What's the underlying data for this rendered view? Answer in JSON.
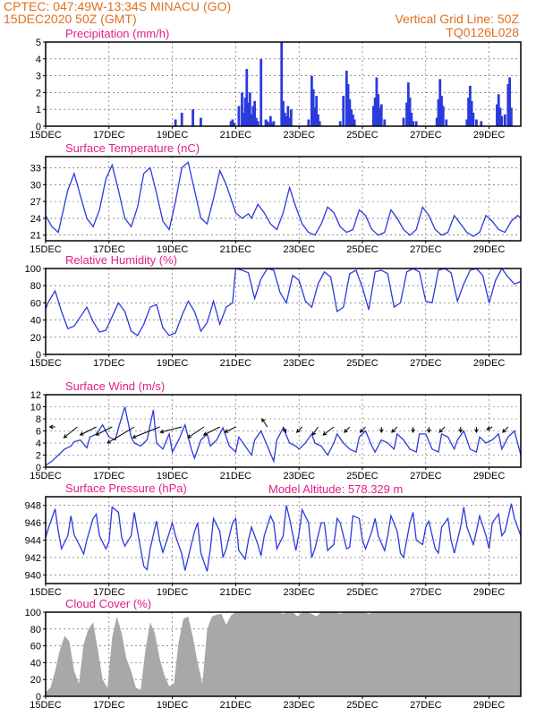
{
  "header": {
    "line1_left": "CPTEC:  047:49W-13:34S  MINACU (GO)",
    "line2_left": "15DEC2020 50Z (GMT)",
    "line1_right": "Vertical Grid Line: 50Z",
    "line2_right": "TQ0126L028"
  },
  "colors": {
    "header": "#e07020",
    "title": "#e0208a",
    "series": "#2a3bdc",
    "cloud": "#a8a8a8"
  },
  "x_ticks": [
    "15DEC",
    "17DEC",
    "19DEC",
    "21DEC",
    "23DEC",
    "25DEC",
    "27DEC",
    "29DEC"
  ],
  "model_altitude": "Model Altitude: 578.329 m",
  "chart_data": [
    {
      "type": "bar",
      "title": "Precipitation (mm/h)",
      "ylim": [
        0,
        5
      ],
      "yticks": [
        0,
        1,
        2,
        3,
        4,
        5
      ],
      "x_days": [
        4.1,
        4.3,
        4.65,
        4.9,
        5.85,
        5.9,
        5.95,
        6.1,
        6.2,
        6.25,
        6.3,
        6.35,
        6.4,
        6.45,
        6.5,
        6.55,
        6.6,
        6.65,
        6.7,
        6.8,
        6.95,
        7.0,
        7.05,
        7.1,
        7.15,
        7.2,
        7.45,
        7.5,
        7.55,
        7.6,
        7.65,
        7.7,
        7.75,
        8.3,
        8.4,
        8.45,
        8.5,
        8.55,
        8.6,
        8.65,
        9.3,
        9.4,
        9.5,
        9.55,
        9.6,
        9.65,
        9.7,
        9.75,
        10.35,
        10.4,
        10.45,
        10.5,
        10.55,
        10.6,
        10.7,
        11.3,
        11.4,
        11.45,
        11.5,
        11.55,
        11.6,
        11.7,
        12.35,
        12.4,
        12.45,
        12.5,
        12.55,
        12.65,
        13.3,
        13.35,
        13.4,
        13.45,
        13.5,
        13.6,
        13.75,
        14.25,
        14.3,
        14.35,
        14.4,
        14.5,
        14.6,
        14.65,
        14.7
      ],
      "values": [
        0.4,
        0.8,
        1.0,
        0.5,
        0.3,
        0.4,
        0.2,
        1.2,
        2.0,
        0.8,
        1.7,
        3.4,
        1.4,
        2.0,
        0.7,
        1.2,
        1.5,
        0.5,
        0.3,
        4.0,
        0.4,
        0.3,
        0.2,
        0.6,
        0.2,
        0.3,
        5.0,
        1.5,
        0.8,
        0.6,
        1.2,
        0.5,
        1.0,
        0.4,
        3.0,
        2.2,
        1.1,
        1.8,
        0.7,
        0.3,
        0.3,
        1.8,
        3.3,
        2.5,
        1.6,
        1.0,
        0.7,
        0.4,
        1.2,
        1.7,
        2.9,
        1.9,
        1.1,
        1.3,
        0.4,
        0.5,
        1.4,
        2.6,
        1.7,
        0.8,
        0.3,
        0.3,
        0.5,
        1.6,
        2.8,
        1.8,
        1.2,
        0.4,
        0.4,
        1.7,
        2.4,
        1.5,
        0.8,
        0.4,
        0.3,
        1.3,
        1.9,
        1.1,
        0.6,
        0.7,
        2.5,
        2.9,
        1.1
      ]
    },
    {
      "type": "line",
      "title": "Surface Temperature (nC)",
      "ylim": [
        20,
        35
      ],
      "yticks": [
        21,
        24,
        27,
        30,
        33
      ],
      "x_days": [
        0.0,
        0.2,
        0.4,
        0.5,
        0.7,
        0.9,
        1.1,
        1.3,
        1.5,
        1.7,
        1.9,
        2.1,
        2.3,
        2.5,
        2.7,
        2.9,
        3.1,
        3.3,
        3.5,
        3.7,
        3.9,
        4.1,
        4.3,
        4.5,
        4.7,
        4.9,
        5.1,
        5.3,
        5.5,
        5.7,
        6.0,
        6.2,
        6.4,
        6.5,
        6.7,
        6.9,
        7.1,
        7.3,
        7.5,
        7.7,
        7.9,
        8.1,
        8.3,
        8.5,
        8.7,
        8.9,
        9.1,
        9.3,
        9.5,
        9.7,
        9.9,
        10.1,
        10.3,
        10.5,
        10.7,
        10.9,
        11.1,
        11.3,
        11.5,
        11.7,
        11.9,
        12.1,
        12.3,
        12.5,
        12.7,
        12.9,
        13.1,
        13.3,
        13.5,
        13.7,
        13.9,
        14.1,
        14.3,
        14.5,
        14.7,
        14.9,
        15.0
      ],
      "values": [
        24.5,
        22.5,
        21.5,
        24.0,
        29.0,
        32.0,
        28.0,
        24.0,
        22.5,
        25.5,
        31.0,
        33.5,
        29.0,
        24.0,
        22.5,
        26.0,
        32.0,
        33.0,
        28.5,
        23.5,
        22.0,
        27.0,
        33.0,
        34.0,
        29.0,
        24.0,
        23.0,
        27.5,
        32.5,
        30.0,
        25.0,
        24.0,
        24.8,
        24.0,
        26.5,
        25.0,
        23.0,
        22.0,
        25.0,
        29.5,
        26.0,
        23.0,
        21.5,
        21.0,
        23.0,
        26.0,
        25.0,
        22.5,
        21.5,
        22.0,
        25.5,
        24.5,
        22.0,
        21.0,
        21.5,
        25.5,
        24.0,
        22.0,
        21.0,
        22.0,
        26.0,
        24.5,
        22.0,
        21.0,
        21.5,
        24.5,
        23.0,
        21.5,
        20.8,
        21.5,
        24.5,
        23.5,
        22.0,
        21.5,
        23.5,
        24.5,
        24.0
      ]
    },
    {
      "type": "line",
      "title": "Relative Humidity (%)",
      "ylim": [
        0,
        100
      ],
      "yticks": [
        0,
        20,
        40,
        60,
        80,
        100
      ],
      "x_days": [
        0.0,
        0.1,
        0.3,
        0.5,
        0.7,
        0.9,
        1.1,
        1.3,
        1.5,
        1.7,
        1.9,
        2.1,
        2.3,
        2.5,
        2.7,
        2.9,
        3.1,
        3.3,
        3.5,
        3.7,
        3.9,
        4.1,
        4.3,
        4.5,
        4.7,
        4.9,
        5.1,
        5.3,
        5.5,
        5.7,
        5.9,
        6.0,
        6.2,
        6.4,
        6.6,
        6.8,
        7.0,
        7.2,
        7.4,
        7.6,
        7.8,
        8.0,
        8.2,
        8.4,
        8.6,
        8.8,
        9.0,
        9.2,
        9.4,
        9.6,
        9.8,
        10.0,
        10.2,
        10.4,
        10.6,
        10.8,
        11.0,
        11.2,
        11.4,
        11.6,
        11.8,
        12.0,
        12.2,
        12.4,
        12.6,
        12.8,
        13.0,
        13.2,
        13.4,
        13.6,
        13.8,
        14.0,
        14.2,
        14.4,
        14.6,
        14.8,
        15.0
      ],
      "values": [
        53.0,
        62.0,
        74.0,
        50.0,
        30.0,
        33.0,
        44.0,
        55.0,
        38.0,
        26.0,
        28.0,
        44.0,
        60.0,
        50.0,
        27.0,
        22.0,
        35.0,
        55.0,
        58.0,
        31.0,
        22.0,
        25.0,
        45.0,
        62.0,
        50.0,
        27.0,
        37.0,
        62.0,
        35.0,
        55.0,
        60.0,
        100.0,
        98.0,
        95.0,
        65.0,
        88.0,
        100.0,
        98.0,
        72.0,
        60.0,
        92.0,
        86.0,
        62.0,
        55.0,
        82.0,
        96.0,
        90.0,
        50.0,
        55.0,
        94.0,
        98.0,
        78.0,
        52.0,
        96.0,
        98.0,
        94.0,
        55.0,
        60.0,
        96.0,
        100.0,
        96.0,
        62.0,
        60.0,
        98.0,
        100.0,
        95.0,
        62.0,
        82.0,
        98.0,
        100.0,
        92.0,
        60.0,
        86.0,
        100.0,
        90.0,
        82.0,
        85.0
      ]
    },
    {
      "type": "line",
      "title": "Surface Wind (m/s)",
      "ylim": [
        0,
        12
      ],
      "yticks": [
        0,
        2,
        4,
        6,
        8,
        10,
        12
      ],
      "x_days": [
        0.0,
        0.2,
        0.4,
        0.6,
        0.8,
        0.9,
        1.1,
        1.3,
        1.4,
        1.6,
        1.8,
        2.0,
        2.2,
        2.3,
        2.5,
        2.7,
        2.8,
        3.0,
        3.2,
        3.4,
        3.5,
        3.7,
        3.9,
        4.0,
        4.2,
        4.4,
        4.6,
        4.7,
        4.9,
        5.1,
        5.2,
        5.4,
        5.6,
        5.8,
        6.0,
        6.1,
        6.3,
        6.5,
        6.6,
        6.8,
        7.0,
        7.2,
        7.3,
        7.5,
        7.7,
        7.9,
        8.0,
        8.2,
        8.4,
        8.5,
        8.7,
        8.9,
        9.1,
        9.2,
        9.4,
        9.6,
        9.8,
        9.9,
        10.1,
        10.3,
        10.4,
        10.6,
        10.8,
        11.0,
        11.1,
        11.3,
        11.5,
        11.7,
        11.8,
        12.0,
        12.2,
        12.4,
        12.5,
        12.7,
        12.9,
        13.0,
        13.2,
        13.4,
        13.6,
        13.7,
        13.9,
        14.1,
        14.3,
        14.4,
        14.6,
        14.8,
        15.0
      ],
      "values": [
        0.3,
        1.0,
        2.0,
        3.0,
        3.5,
        4.2,
        4.5,
        3.2,
        5.0,
        5.5,
        7.0,
        5.0,
        4.5,
        6.5,
        10.0,
        5.0,
        4.0,
        3.5,
        4.5,
        9.5,
        4.0,
        3.0,
        5.5,
        2.5,
        4.5,
        7.0,
        3.0,
        1.5,
        4.5,
        5.5,
        3.5,
        4.5,
        6.5,
        3.5,
        2.5,
        5.0,
        3.5,
        2.0,
        4.5,
        6.0,
        3.5,
        1.0,
        4.5,
        6.5,
        4.0,
        3.5,
        3.0,
        4.0,
        5.5,
        4.0,
        3.5,
        2.0,
        4.0,
        5.5,
        4.0,
        3.0,
        2.5,
        5.0,
        6.0,
        3.5,
        2.5,
        4.5,
        4.0,
        3.0,
        5.5,
        4.5,
        3.0,
        2.5,
        5.5,
        5.5,
        3.0,
        2.5,
        5.5,
        5.0,
        3.0,
        4.5,
        6.0,
        3.0,
        2.5,
        5.0,
        4.0,
        4.5,
        5.5,
        3.0,
        5.0,
        6.0,
        2.0
      ],
      "arrows": {
        "x_days": [
          0.3,
          1.0,
          1.6,
          2.1,
          2.8,
          3.6,
          4.3,
          5.0,
          5.5,
          6.0,
          7.0,
          7.5,
          8.1,
          8.6,
          9.1,
          9.6,
          10.1,
          10.6,
          11.1,
          11.6,
          12.1,
          12.6,
          13.1,
          13.6,
          14.1,
          14.6
        ],
        "u": [
          -1,
          -2.5,
          -3,
          -3,
          -5,
          -5,
          -4,
          -3,
          -3,
          -2,
          -1,
          0.5,
          -1,
          -1,
          -2,
          -1,
          -1,
          0,
          -1,
          0,
          0,
          -1,
          0,
          0,
          -1,
          -1
        ],
        "v": [
          0,
          -2,
          -1.5,
          -1.5,
          -3,
          -2,
          -1,
          -2,
          -1.5,
          -1,
          1.5,
          -1,
          -1,
          -1.5,
          -1.5,
          -1,
          -1,
          -1,
          -1,
          -1,
          -1,
          -1,
          -1,
          -1,
          -0.5,
          -1
        ]
      }
    },
    {
      "type": "line",
      "title": "Surface Pressure (hPa)",
      "ylim": [
        939,
        949
      ],
      "yticks": [
        940,
        942,
        944,
        946,
        948
      ],
      "x_days": [
        0.0,
        0.1,
        0.3,
        0.4,
        0.5,
        0.7,
        0.8,
        0.9,
        1.1,
        1.2,
        1.3,
        1.5,
        1.6,
        1.7,
        1.9,
        2.0,
        2.1,
        2.3,
        2.4,
        2.5,
        2.7,
        2.8,
        2.9,
        3.1,
        3.2,
        3.3,
        3.5,
        3.6,
        3.7,
        3.9,
        4.0,
        4.1,
        4.3,
        4.4,
        4.5,
        4.7,
        4.8,
        4.9,
        5.1,
        5.2,
        5.3,
        5.5,
        5.6,
        5.7,
        5.9,
        6.0,
        6.1,
        6.3,
        6.4,
        6.5,
        6.7,
        6.8,
        6.9,
        7.1,
        7.2,
        7.3,
        7.5,
        7.6,
        7.7,
        7.9,
        8.0,
        8.1,
        8.3,
        8.4,
        8.5,
        8.7,
        8.8,
        8.9,
        9.1,
        9.2,
        9.3,
        9.5,
        9.6,
        9.7,
        9.9,
        10.0,
        10.1,
        10.3,
        10.4,
        10.5,
        10.7,
        10.8,
        10.9,
        11.1,
        11.2,
        11.3,
        11.5,
        11.6,
        11.7,
        11.9,
        12.0,
        12.1,
        12.3,
        12.4,
        12.5,
        12.7,
        12.8,
        12.9,
        13.1,
        13.2,
        13.3,
        13.5,
        13.6,
        13.7,
        13.9,
        14.0,
        14.1,
        14.3,
        14.4,
        14.5,
        14.7,
        14.8,
        15.0
      ],
      "values": [
        944.3,
        945.5,
        947.6,
        945.0,
        943.0,
        944.5,
        946.8,
        944.6,
        943.2,
        942.4,
        944.0,
        946.5,
        947.0,
        944.5,
        943.0,
        943.8,
        947.8,
        947.2,
        944.3,
        943.3,
        944.5,
        947.2,
        945.0,
        941.0,
        940.6,
        943.0,
        946.2,
        944.0,
        942.6,
        944.8,
        946.0,
        944.5,
        942.4,
        940.5,
        942.0,
        945.0,
        946.0,
        942.5,
        940.4,
        943.0,
        946.5,
        945.0,
        942.0,
        943.0,
        946.0,
        946.5,
        942.8,
        941.8,
        944.0,
        945.5,
        943.5,
        942.2,
        944.5,
        946.8,
        946.0,
        943.0,
        944.5,
        948.0,
        946.5,
        942.8,
        944.8,
        947.5,
        946.0,
        942.0,
        943.0,
        946.0,
        946.0,
        942.8,
        943.5,
        946.5,
        946.0,
        943.0,
        943.2,
        946.8,
        946.5,
        944.0,
        943.0,
        945.0,
        946.5,
        944.5,
        942.8,
        944.5,
        946.8,
        945.0,
        942.5,
        942.0,
        946.0,
        947.2,
        944.0,
        943.5,
        945.5,
        946.2,
        943.0,
        942.5,
        945.5,
        946.5,
        944.0,
        942.5,
        945.5,
        947.8,
        945.5,
        943.5,
        945.0,
        946.8,
        944.5,
        943.0,
        946.0,
        947.0,
        944.5,
        945.0,
        948.2,
        946.5,
        944.5
      ]
    },
    {
      "type": "area",
      "title": "Cloud Cover (%)",
      "ylim": [
        0,
        100
      ],
      "yticks": [
        0,
        20,
        40,
        60,
        80,
        100
      ],
      "x_days": [
        0.0,
        0.15,
        0.3,
        0.45,
        0.6,
        0.75,
        0.9,
        1.05,
        1.2,
        1.35,
        1.5,
        1.65,
        1.8,
        1.95,
        2.1,
        2.25,
        2.4,
        2.55,
        2.7,
        2.85,
        3.0,
        3.15,
        3.3,
        3.45,
        3.6,
        3.75,
        3.9,
        4.05,
        4.2,
        4.35,
        4.5,
        4.65,
        4.8,
        4.95,
        5.1,
        5.25,
        5.4,
        5.55,
        5.7,
        5.85,
        6.0,
        6.15,
        6.3,
        6.45,
        6.6,
        6.75,
        6.9,
        7.05,
        7.2,
        7.35,
        7.5,
        7.65,
        7.8,
        7.95,
        8.1,
        8.25,
        8.4,
        8.55,
        8.7,
        8.85,
        9.0,
        9.15,
        9.3,
        9.45,
        9.6,
        9.75,
        9.9,
        10.05,
        10.2,
        10.35,
        10.5,
        10.65,
        10.8,
        10.95,
        11.1,
        11.25,
        11.4,
        11.55,
        11.7,
        11.85,
        12.0,
        12.15,
        12.3,
        12.45,
        12.6,
        12.75,
        12.9,
        13.05,
        13.2,
        13.35,
        13.5,
        13.65,
        13.8,
        13.95,
        14.1,
        14.25,
        14.4,
        14.55,
        14.7,
        14.85,
        15.0
      ],
      "values": [
        5,
        10,
        30,
        55,
        72,
        65,
        30,
        15,
        62,
        80,
        88,
        55,
        20,
        10,
        70,
        95,
        75,
        45,
        30,
        10,
        8,
        55,
        88,
        75,
        45,
        25,
        12,
        15,
        65,
        92,
        95,
        70,
        40,
        15,
        80,
        95,
        97,
        98,
        85,
        96,
        100,
        100,
        100,
        100,
        100,
        100,
        100,
        100,
        100,
        100,
        98,
        100,
        100,
        95,
        100,
        100,
        98,
        95,
        100,
        100,
        100,
        100,
        98,
        100,
        100,
        100,
        100,
        100,
        98,
        100,
        100,
        100,
        100,
        100,
        100,
        100,
        100,
        100,
        100,
        100,
        100,
        100,
        100,
        100,
        100,
        100,
        100,
        100,
        100,
        100,
        100,
        100,
        100,
        100,
        100,
        100,
        100,
        100,
        100,
        100,
        100
      ]
    }
  ]
}
